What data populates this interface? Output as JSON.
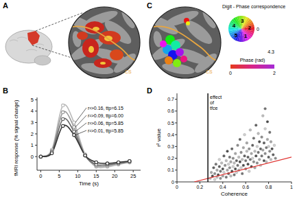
{
  "figure": {
    "panel_labels": [
      "A",
      "B",
      "C",
      "D"
    ],
    "sulcus_label": "CS",
    "phase_legend": {
      "title": "Digit - Phase correspondence",
      "digits": [
        "1",
        "2",
        "3",
        "4",
        "5"
      ],
      "zero_label": "0"
    },
    "colorbar": {
      "max": 4.3,
      "ticks": [
        0,
        2
      ],
      "label": "Phase (rad)"
    }
  },
  "chart_data": [
    {
      "type": "line",
      "marker": "circle",
      "x_label": "Time (s)",
      "y_label": "fMRI response (% signal change)",
      "x": [
        0,
        3,
        6,
        9,
        12,
        15,
        18,
        21,
        24
      ],
      "xlim": [
        -1,
        27
      ],
      "xticks": [
        0,
        5,
        10,
        15,
        20,
        25
      ],
      "ylim": [
        -1.2,
        5.2
      ],
      "yticks": [
        0,
        1,
        2,
        3,
        4,
        5
      ],
      "series": [
        {
          "name": "r²>0.16, ttp=6.15",
          "color": "#b8b8b8",
          "values": [
            0,
            0.6,
            4.5,
            3.0,
            0.2,
            -0.9,
            -0.9,
            -0.7,
            -0.5
          ]
        },
        {
          "name": "r²>0.09, ttp=6.00",
          "color": "#969696",
          "values": [
            0,
            0.5,
            3.9,
            2.6,
            0.1,
            -0.8,
            -0.8,
            -0.6,
            -0.5
          ]
        },
        {
          "name": "r²>0.06, ttp=5.85",
          "color": "#666666",
          "values": [
            0,
            0.4,
            3.3,
            2.2,
            0.1,
            -0.7,
            -0.7,
            -0.6,
            -0.4
          ]
        },
        {
          "name": "r²>0.01, ttp=5.85",
          "color": "#333333",
          "values": [
            0,
            0.3,
            2.7,
            1.9,
            0.1,
            -0.5,
            -0.6,
            -0.5,
            -0.4
          ]
        }
      ]
    },
    {
      "type": "scatter",
      "x_label": "Coherence",
      "y_label": "r² value",
      "xlim": [
        0,
        1
      ],
      "xticks": [
        0,
        0.2,
        0.4,
        0.6,
        0.8,
        1
      ],
      "ylim": [
        0,
        0.75
      ],
      "yticks": [
        0,
        0.1,
        0.2,
        0.3,
        0.4,
        0.5,
        0.6,
        0.7
      ],
      "annotations": [
        {
          "text": "effect of tfce",
          "x": 0.27
        }
      ],
      "series": [
        {
          "type": "scatter",
          "color": "#888888",
          "x": [
            0.29,
            0.3,
            0.31,
            0.32,
            0.33,
            0.33,
            0.34,
            0.35,
            0.35,
            0.36,
            0.37,
            0.37,
            0.38,
            0.38,
            0.39,
            0.4,
            0.4,
            0.41,
            0.41,
            0.42,
            0.43,
            0.43,
            0.44,
            0.44,
            0.45,
            0.45,
            0.46,
            0.46,
            0.47,
            0.47,
            0.48,
            0.48,
            0.49,
            0.49,
            0.5,
            0.5,
            0.51,
            0.51,
            0.52,
            0.52,
            0.53,
            0.53,
            0.54,
            0.54,
            0.55,
            0.55,
            0.56,
            0.56,
            0.57,
            0.57,
            0.58,
            0.58,
            0.59,
            0.59,
            0.6,
            0.6,
            0.61,
            0.61,
            0.62,
            0.62,
            0.63,
            0.63,
            0.64,
            0.64,
            0.65,
            0.65,
            0.66,
            0.66,
            0.67,
            0.67,
            0.68,
            0.68,
            0.69,
            0.69,
            0.7,
            0.7,
            0.71,
            0.71,
            0.72,
            0.72,
            0.73,
            0.73,
            0.74,
            0.74,
            0.75,
            0.75,
            0.76,
            0.76,
            0.77,
            0.77,
            0.78,
            0.78,
            0.79,
            0.79,
            0.8,
            0.8,
            0.81,
            0.81,
            0.82,
            0.82,
            0.83,
            0.84,
            0.85,
            0.86,
            0.77
          ],
          "values": [
            0.03,
            0.08,
            0.05,
            0.12,
            0.02,
            0.07,
            0.15,
            0.04,
            0.1,
            0.06,
            0.13,
            0.19,
            0.03,
            0.09,
            0.16,
            0.05,
            0.11,
            0.22,
            0.08,
            0.14,
            0.04,
            0.18,
            0.1,
            0.26,
            0.07,
            0.15,
            0.12,
            0.21,
            0.05,
            0.17,
            0.09,
            0.28,
            0.13,
            0.2,
            0.06,
            0.16,
            0.24,
            0.11,
            0.18,
            0.08,
            0.31,
            0.14,
            0.21,
            0.1,
            0.17,
            0.36,
            0.12,
            0.25,
            0.07,
            0.19,
            0.29,
            0.14,
            0.22,
            0.4,
            0.11,
            0.18,
            0.26,
            0.33,
            0.15,
            0.21,
            0.09,
            0.28,
            0.19,
            0.44,
            0.24,
            0.13,
            0.31,
            0.2,
            0.17,
            0.37,
            0.26,
            0.12,
            0.22,
            0.48,
            0.3,
            0.16,
            0.25,
            0.41,
            0.19,
            0.34,
            0.28,
            0.14,
            0.38,
            0.22,
            0.56,
            0.27,
            0.18,
            0.33,
            0.45,
            0.24,
            0.29,
            0.17,
            0.36,
            0.51,
            0.21,
            0.3,
            0.26,
            0.42,
            0.19,
            0.34,
            0.28,
            0.23,
            0.31,
            0.2,
            0.62
          ]
        },
        {
          "type": "line",
          "color": "#e0322f",
          "x": [
            0.15,
            1
          ],
          "values": [
            0,
            0.21
          ]
        }
      ]
    }
  ]
}
